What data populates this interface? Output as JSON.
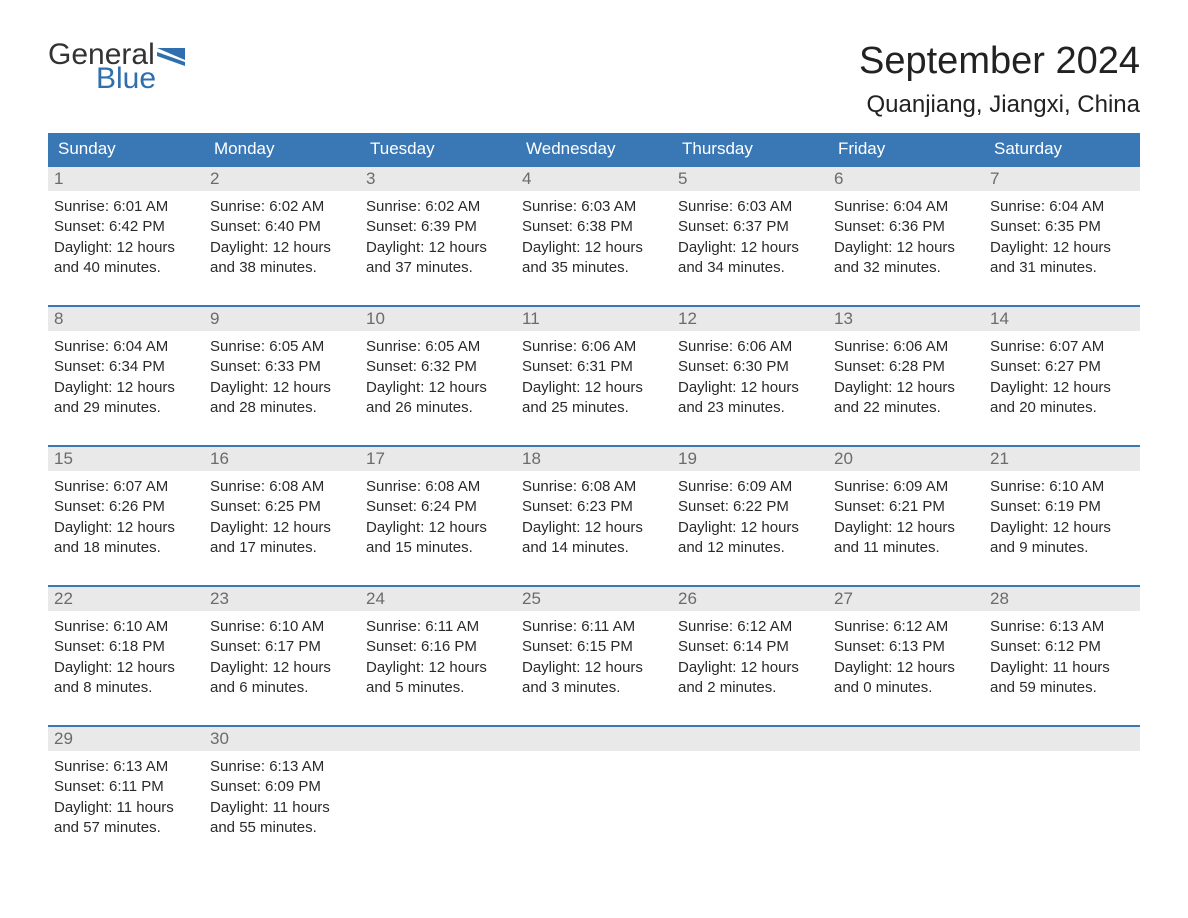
{
  "logo": {
    "text_general": "General",
    "text_blue": "Blue",
    "flag_color": "#2f6fad"
  },
  "header": {
    "month_title": "September 2024",
    "location": "Quanjiang, Jiangxi, China"
  },
  "colors": {
    "header_bg": "#3a78b5",
    "header_text": "#ffffff",
    "daynum_bg": "#e9e9e9",
    "daynum_text": "#6b6b6b",
    "week_border": "#3a78b5",
    "body_text": "#2a2a2a",
    "background": "#ffffff"
  },
  "typography": {
    "month_title_fontsize": 38,
    "location_fontsize": 24,
    "dayname_fontsize": 17,
    "daynum_fontsize": 17,
    "cell_fontsize": 15
  },
  "calendar": {
    "type": "table",
    "day_names": [
      "Sunday",
      "Monday",
      "Tuesday",
      "Wednesday",
      "Thursday",
      "Friday",
      "Saturday"
    ],
    "weeks": [
      [
        {
          "n": "1",
          "sunrise": "Sunrise: 6:01 AM",
          "sunset": "Sunset: 6:42 PM",
          "d1": "Daylight: 12 hours",
          "d2": "and 40 minutes."
        },
        {
          "n": "2",
          "sunrise": "Sunrise: 6:02 AM",
          "sunset": "Sunset: 6:40 PM",
          "d1": "Daylight: 12 hours",
          "d2": "and 38 minutes."
        },
        {
          "n": "3",
          "sunrise": "Sunrise: 6:02 AM",
          "sunset": "Sunset: 6:39 PM",
          "d1": "Daylight: 12 hours",
          "d2": "and 37 minutes."
        },
        {
          "n": "4",
          "sunrise": "Sunrise: 6:03 AM",
          "sunset": "Sunset: 6:38 PM",
          "d1": "Daylight: 12 hours",
          "d2": "and 35 minutes."
        },
        {
          "n": "5",
          "sunrise": "Sunrise: 6:03 AM",
          "sunset": "Sunset: 6:37 PM",
          "d1": "Daylight: 12 hours",
          "d2": "and 34 minutes."
        },
        {
          "n": "6",
          "sunrise": "Sunrise: 6:04 AM",
          "sunset": "Sunset: 6:36 PM",
          "d1": "Daylight: 12 hours",
          "d2": "and 32 minutes."
        },
        {
          "n": "7",
          "sunrise": "Sunrise: 6:04 AM",
          "sunset": "Sunset: 6:35 PM",
          "d1": "Daylight: 12 hours",
          "d2": "and 31 minutes."
        }
      ],
      [
        {
          "n": "8",
          "sunrise": "Sunrise: 6:04 AM",
          "sunset": "Sunset: 6:34 PM",
          "d1": "Daylight: 12 hours",
          "d2": "and 29 minutes."
        },
        {
          "n": "9",
          "sunrise": "Sunrise: 6:05 AM",
          "sunset": "Sunset: 6:33 PM",
          "d1": "Daylight: 12 hours",
          "d2": "and 28 minutes."
        },
        {
          "n": "10",
          "sunrise": "Sunrise: 6:05 AM",
          "sunset": "Sunset: 6:32 PM",
          "d1": "Daylight: 12 hours",
          "d2": "and 26 minutes."
        },
        {
          "n": "11",
          "sunrise": "Sunrise: 6:06 AM",
          "sunset": "Sunset: 6:31 PM",
          "d1": "Daylight: 12 hours",
          "d2": "and 25 minutes."
        },
        {
          "n": "12",
          "sunrise": "Sunrise: 6:06 AM",
          "sunset": "Sunset: 6:30 PM",
          "d1": "Daylight: 12 hours",
          "d2": "and 23 minutes."
        },
        {
          "n": "13",
          "sunrise": "Sunrise: 6:06 AM",
          "sunset": "Sunset: 6:28 PM",
          "d1": "Daylight: 12 hours",
          "d2": "and 22 minutes."
        },
        {
          "n": "14",
          "sunrise": "Sunrise: 6:07 AM",
          "sunset": "Sunset: 6:27 PM",
          "d1": "Daylight: 12 hours",
          "d2": "and 20 minutes."
        }
      ],
      [
        {
          "n": "15",
          "sunrise": "Sunrise: 6:07 AM",
          "sunset": "Sunset: 6:26 PM",
          "d1": "Daylight: 12 hours",
          "d2": "and 18 minutes."
        },
        {
          "n": "16",
          "sunrise": "Sunrise: 6:08 AM",
          "sunset": "Sunset: 6:25 PM",
          "d1": "Daylight: 12 hours",
          "d2": "and 17 minutes."
        },
        {
          "n": "17",
          "sunrise": "Sunrise: 6:08 AM",
          "sunset": "Sunset: 6:24 PM",
          "d1": "Daylight: 12 hours",
          "d2": "and 15 minutes."
        },
        {
          "n": "18",
          "sunrise": "Sunrise: 6:08 AM",
          "sunset": "Sunset: 6:23 PM",
          "d1": "Daylight: 12 hours",
          "d2": "and 14 minutes."
        },
        {
          "n": "19",
          "sunrise": "Sunrise: 6:09 AM",
          "sunset": "Sunset: 6:22 PM",
          "d1": "Daylight: 12 hours",
          "d2": "and 12 minutes."
        },
        {
          "n": "20",
          "sunrise": "Sunrise: 6:09 AM",
          "sunset": "Sunset: 6:21 PM",
          "d1": "Daylight: 12 hours",
          "d2": "and 11 minutes."
        },
        {
          "n": "21",
          "sunrise": "Sunrise: 6:10 AM",
          "sunset": "Sunset: 6:19 PM",
          "d1": "Daylight: 12 hours",
          "d2": "and 9 minutes."
        }
      ],
      [
        {
          "n": "22",
          "sunrise": "Sunrise: 6:10 AM",
          "sunset": "Sunset: 6:18 PM",
          "d1": "Daylight: 12 hours",
          "d2": "and 8 minutes."
        },
        {
          "n": "23",
          "sunrise": "Sunrise: 6:10 AM",
          "sunset": "Sunset: 6:17 PM",
          "d1": "Daylight: 12 hours",
          "d2": "and 6 minutes."
        },
        {
          "n": "24",
          "sunrise": "Sunrise: 6:11 AM",
          "sunset": "Sunset: 6:16 PM",
          "d1": "Daylight: 12 hours",
          "d2": "and 5 minutes."
        },
        {
          "n": "25",
          "sunrise": "Sunrise: 6:11 AM",
          "sunset": "Sunset: 6:15 PM",
          "d1": "Daylight: 12 hours",
          "d2": "and 3 minutes."
        },
        {
          "n": "26",
          "sunrise": "Sunrise: 6:12 AM",
          "sunset": "Sunset: 6:14 PM",
          "d1": "Daylight: 12 hours",
          "d2": "and 2 minutes."
        },
        {
          "n": "27",
          "sunrise": "Sunrise: 6:12 AM",
          "sunset": "Sunset: 6:13 PM",
          "d1": "Daylight: 12 hours",
          "d2": "and 0 minutes."
        },
        {
          "n": "28",
          "sunrise": "Sunrise: 6:13 AM",
          "sunset": "Sunset: 6:12 PM",
          "d1": "Daylight: 11 hours",
          "d2": "and 59 minutes."
        }
      ],
      [
        {
          "n": "29",
          "sunrise": "Sunrise: 6:13 AM",
          "sunset": "Sunset: 6:11 PM",
          "d1": "Daylight: 11 hours",
          "d2": "and 57 minutes."
        },
        {
          "n": "30",
          "sunrise": "Sunrise: 6:13 AM",
          "sunset": "Sunset: 6:09 PM",
          "d1": "Daylight: 11 hours",
          "d2": "and 55 minutes."
        },
        null,
        null,
        null,
        null,
        null
      ]
    ]
  }
}
